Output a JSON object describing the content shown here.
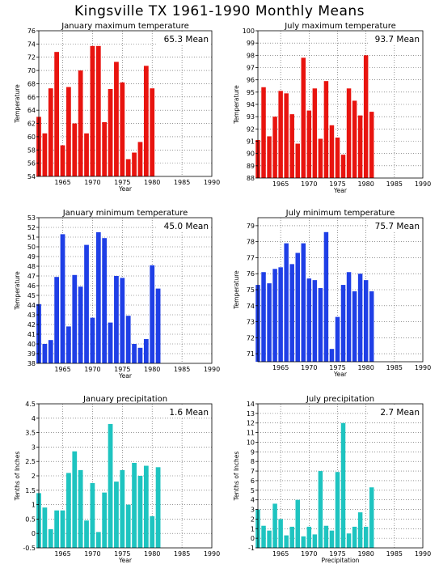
{
  "title": "Kingsville TX   1961-1990 Monthly Means",
  "chart_data": [
    {
      "type": "bar",
      "title": "January maximum temperature",
      "xlabel": "Year",
      "ylabel": "Temperature",
      "mean_label": "65.3 Mean",
      "color": "#e8140f",
      "xlim": [
        1961,
        1990
      ],
      "ylim": [
        54,
        76
      ],
      "ytick_step": 2,
      "xticks": [
        1965,
        1970,
        1975,
        1980,
        1985,
        1990
      ],
      "grid": true,
      "x": [
        1961,
        1962,
        1963,
        1964,
        1965,
        1966,
        1967,
        1968,
        1969,
        1970,
        1971,
        1972,
        1973,
        1974,
        1975,
        1976,
        1977,
        1978,
        1979,
        1980,
        1981
      ],
      "values": [
        63.0,
        60.5,
        67.3,
        72.8,
        58.7,
        67.5,
        62.0,
        70.0,
        60.5,
        73.7,
        73.7,
        62.2,
        67.2,
        71.3,
        68.2,
        56.6,
        57.6,
        59.2,
        70.7,
        67.3,
        null
      ]
    },
    {
      "type": "bar",
      "title": "July maximum temperature",
      "xlabel": "Year",
      "ylabel": "Temperature",
      "mean_label": "93.7 Mean",
      "color": "#e8140f",
      "xlim": [
        1961,
        1990
      ],
      "ylim": [
        88,
        100
      ],
      "ytick_step": 1,
      "xticks": [
        1965,
        1970,
        1975,
        1980,
        1985,
        1990
      ],
      "grid": true,
      "x": [
        1961,
        1962,
        1963,
        1964,
        1965,
        1966,
        1967,
        1968,
        1969,
        1970,
        1971,
        1972,
        1973,
        1974,
        1975,
        1976,
        1977,
        1978,
        1979,
        1980,
        1981
      ],
      "values": [
        91.1,
        95.4,
        91.4,
        93.0,
        95.1,
        94.9,
        93.2,
        90.8,
        97.8,
        93.5,
        95.3,
        91.2,
        95.9,
        92.3,
        91.3,
        89.9,
        95.3,
        94.3,
        93.1,
        98.0,
        93.4
      ]
    },
    {
      "type": "bar",
      "title": "January minimum temperature",
      "xlabel": "Year",
      "ylabel": "Temperature",
      "mean_label": "45.0 Mean",
      "color": "#1f3fe6",
      "xlim": [
        1961,
        1990
      ],
      "ylim": [
        38,
        53
      ],
      "ytick_step": 1,
      "xticks": [
        1965,
        1970,
        1975,
        1980,
        1985,
        1990
      ],
      "grid": true,
      "x": [
        1961,
        1962,
        1963,
        1964,
        1965,
        1966,
        1967,
        1968,
        1969,
        1970,
        1971,
        1972,
        1973,
        1974,
        1975,
        1976,
        1977,
        1978,
        1979,
        1980,
        1981
      ],
      "values": [
        44.1,
        40.0,
        40.4,
        46.9,
        51.3,
        41.8,
        47.1,
        45.9,
        50.2,
        42.7,
        51.5,
        50.9,
        42.2,
        47.0,
        46.8,
        42.9,
        40.0,
        39.6,
        40.5,
        48.1,
        45.7
      ]
    },
    {
      "type": "bar",
      "title": "July minimum temperature",
      "xlabel": "Year",
      "ylabel": "Temperature",
      "mean_label": "75.7 Mean",
      "color": "#1f3fe6",
      "xlim": [
        1961,
        1990
      ],
      "ylim": [
        70.5,
        79.5
      ],
      "ytick_values": [
        71,
        72,
        73,
        74,
        75,
        76,
        77,
        78,
        79
      ],
      "xticks": [
        1965,
        1970,
        1975,
        1980,
        1985,
        1990
      ],
      "grid": true,
      "x": [
        1961,
        1962,
        1963,
        1964,
        1965,
        1966,
        1967,
        1968,
        1969,
        1970,
        1971,
        1972,
        1973,
        1974,
        1975,
        1976,
        1977,
        1978,
        1979,
        1980,
        1981
      ],
      "values": [
        75.3,
        76.1,
        75.4,
        76.3,
        76.4,
        77.9,
        76.6,
        77.3,
        77.9,
        75.7,
        75.6,
        75.1,
        78.6,
        71.3,
        73.3,
        75.3,
        76.1,
        74.9,
        76.0,
        75.6,
        74.9
      ]
    },
    {
      "type": "bar",
      "title": "January precipitation",
      "xlabel": "Year",
      "ylabel": "Tenths of Inches",
      "mean_label": "1.6 Mean",
      "color": "#1ec4c0",
      "xlim": [
        1961,
        1990
      ],
      "ylim": [
        -0.5,
        4.5
      ],
      "ytick_step": 0.5,
      "xticks": [
        1965,
        1970,
        1975,
        1980,
        1985,
        1990
      ],
      "grid": true,
      "x": [
        1961,
        1962,
        1963,
        1964,
        1965,
        1966,
        1967,
        1968,
        1969,
        1970,
        1971,
        1972,
        1973,
        1974,
        1975,
        1976,
        1977,
        1978,
        1979,
        1980,
        1981
      ],
      "values": [
        1.4,
        0.9,
        0.15,
        0.8,
        0.8,
        2.1,
        2.85,
        2.2,
        0.45,
        1.75,
        0.05,
        1.42,
        3.8,
        1.8,
        2.2,
        1.0,
        2.45,
        2.0,
        2.35,
        0.6,
        2.3
      ]
    },
    {
      "type": "bar",
      "title": "July precipitation",
      "xlabel": "Precipitation",
      "ylabel": "Tenths of Inches",
      "mean_label": "2.7 Mean",
      "color": "#1ec4c0",
      "xlim": [
        1961,
        1990
      ],
      "ylim": [
        -1,
        14
      ],
      "ytick_step": 1,
      "xticks": [
        1965,
        1970,
        1975,
        1980,
        1985,
        1990
      ],
      "grid": true,
      "x": [
        1961,
        1962,
        1963,
        1964,
        1965,
        1966,
        1967,
        1968,
        1969,
        1970,
        1971,
        1972,
        1973,
        1974,
        1975,
        1976,
        1977,
        1978,
        1979,
        1980,
        1981
      ],
      "values": [
        3.0,
        1.3,
        0.8,
        3.6,
        2.0,
        0.3,
        1.2,
        4.0,
        0.2,
        1.2,
        0.4,
        7.0,
        1.3,
        0.8,
        6.9,
        12.0,
        0.5,
        1.2,
        2.7,
        1.2,
        5.3
      ]
    }
  ]
}
